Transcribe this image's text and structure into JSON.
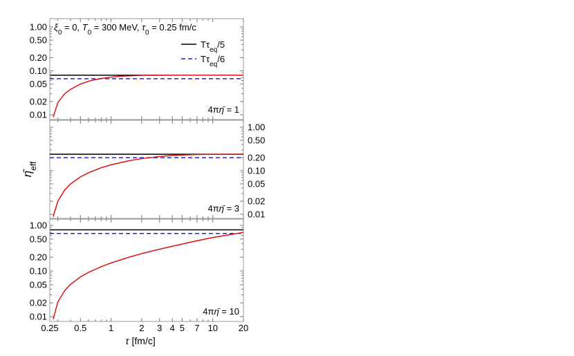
{
  "chart_data": {
    "type": "line",
    "x_axis": {
      "label": "τ [fm/c]",
      "label_symbol": "τ",
      "label_unit": "[fm/c]",
      "scale": "log",
      "xlim": [
        0.25,
        20
      ],
      "ticks": [
        0.25,
        0.5,
        1,
        2,
        3,
        4,
        5,
        7,
        10,
        20
      ],
      "tick_labels": [
        "0.25",
        "0.5",
        "1",
        "2",
        "3",
        "4",
        "5",
        "7",
        "10",
        "20"
      ]
    },
    "y_axis": {
      "label": "η̄eff",
      "label_symbol": "η̄",
      "label_sub": "eff",
      "scale": "log",
      "ylim": [
        0.01,
        1.0
      ],
      "ticks": [
        0.01,
        0.02,
        0.05,
        0.1,
        0.2,
        0.5,
        1.0
      ]
    },
    "annotation": {
      "xi": "ξ",
      "xi_sub": "0",
      "xi_val": " = 0, ",
      "T": "T",
      "T_sub": "0",
      "T_val": " = 300 MeV, ",
      "tau": "τ",
      "tau_sub": "0",
      "tau_val": " = 0.25 fm/c"
    },
    "legend": {
      "placement": "top-right",
      "entries": [
        {
          "pre": "Tτ",
          "sub": "eq",
          "post": "/5",
          "color": "#000000",
          "dash": "solid"
        },
        {
          "pre": "Tτ",
          "sub": "eq",
          "post": "/6",
          "color": "#2222dd",
          "dash": "dashed"
        }
      ]
    },
    "panels": [
      {
        "label_pre": "4π",
        "label_eta": "η̄",
        "label_post": " = 1",
        "yaxis_side": "left",
        "tick_labels": [
          "0.01",
          "0.02",
          "0.05",
          "0.10",
          "0.20",
          "0.50",
          "1.00"
        ],
        "series": [
          {
            "name": "Tτeq/5",
            "color": "#000000",
            "dash": "solid",
            "x": [
              0.25,
              20
            ],
            "y": [
              0.0796,
              0.0796
            ]
          },
          {
            "name": "Tτeq/6",
            "color": "#2222dd",
            "dash": "dashed",
            "x": [
              0.25,
              20
            ],
            "y": [
              0.0663,
              0.0663
            ]
          },
          {
            "color": "#dd1111",
            "dash": "solid",
            "x": [
              0.27,
              0.3,
              0.35,
              0.4,
              0.5,
              0.6,
              0.7,
              0.8,
              1.0,
              1.2,
              1.5,
              2,
              3,
              5,
              10,
              20
            ],
            "y": [
              0.0088,
              0.019,
              0.03,
              0.038,
              0.05,
              0.058,
              0.063,
              0.067,
              0.072,
              0.075,
              0.077,
              0.079,
              0.0795,
              0.0796,
              0.0796,
              0.0796
            ]
          }
        ]
      },
      {
        "label_pre": "4π",
        "label_eta": "η̄",
        "label_post": " = 3",
        "yaxis_side": "right",
        "tick_labels": [
          "0.01",
          "0.02",
          "0.05",
          "0.10",
          "0.20",
          "0.50",
          "1.00"
        ],
        "series": [
          {
            "name": "Tτeq/5",
            "color": "#000000",
            "dash": "solid",
            "x": [
              0.25,
              20
            ],
            "y": [
              0.239,
              0.239
            ]
          },
          {
            "name": "Tτeq/6",
            "color": "#2222dd",
            "dash": "dashed",
            "x": [
              0.25,
              20
            ],
            "y": [
              0.199,
              0.199
            ]
          },
          {
            "color": "#dd1111",
            "dash": "solid",
            "x": [
              0.27,
              0.3,
              0.35,
              0.4,
              0.5,
              0.6,
              0.8,
              1.0,
              1.5,
              2,
              3,
              4,
              5,
              7,
              10,
              15,
              20
            ],
            "y": [
              0.0088,
              0.02,
              0.036,
              0.05,
              0.072,
              0.09,
              0.117,
              0.137,
              0.17,
              0.19,
              0.212,
              0.224,
              0.23,
              0.236,
              0.238,
              0.239,
              0.239
            ]
          }
        ]
      },
      {
        "label_pre": "4π",
        "label_eta": "η̄",
        "label_post": " = 10",
        "yaxis_side": "left",
        "tick_labels": [
          "0.01",
          "0.02",
          "0.05",
          "0.10",
          "0.20",
          "0.50",
          "1.00"
        ],
        "series": [
          {
            "name": "Tτeq/5",
            "color": "#000000",
            "dash": "solid",
            "x": [
              0.25,
              20
            ],
            "y": [
              0.796,
              0.796
            ]
          },
          {
            "name": "Tτeq/6",
            "color": "#2222dd",
            "dash": "dashed",
            "x": [
              0.25,
              20
            ],
            "y": [
              0.663,
              0.663
            ]
          },
          {
            "color": "#dd1111",
            "dash": "solid",
            "x": [
              0.27,
              0.3,
              0.35,
              0.4,
              0.5,
              0.6,
              0.8,
              1.0,
              1.5,
              2,
              3,
              5,
              7,
              10,
              15,
              20
            ],
            "y": [
              0.0088,
              0.021,
              0.037,
              0.051,
              0.074,
              0.093,
              0.124,
              0.15,
              0.2,
              0.24,
              0.3,
              0.39,
              0.46,
              0.54,
              0.63,
              0.7
            ]
          }
        ]
      }
    ]
  }
}
